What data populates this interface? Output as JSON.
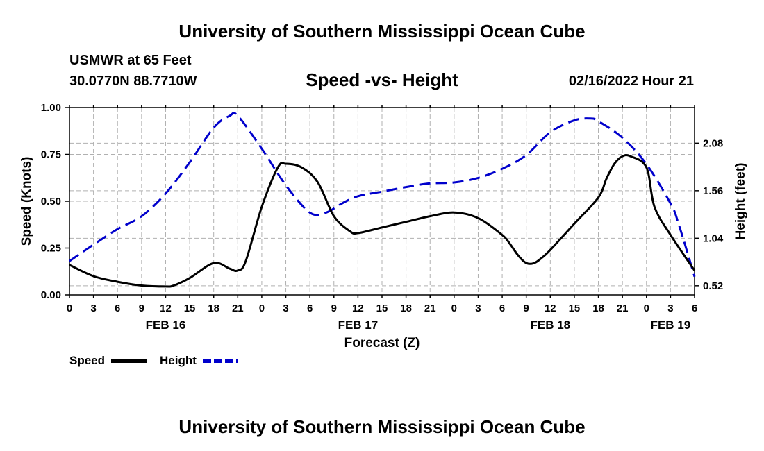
{
  "header": {
    "title": "University of Southern Mississippi Ocean Cube",
    "station": "USMWR at 65 Feet",
    "coords": "30.0770N  88.7710W",
    "subtitle": "Speed -vs- Height",
    "timestamp": "02/16/2022 Hour 21"
  },
  "footer": {
    "title": "University of Southern Mississippi Ocean Cube"
  },
  "colors": {
    "speed": "#000000",
    "height": "#0000cc",
    "grid": "#b0b0b0"
  },
  "chart_data": {
    "type": "line",
    "title": "Speed -vs- Height",
    "xlabel": "Forecast (Z)",
    "ylabel": "Speed (Knots)",
    "y2label": "Height (feet)",
    "xlim": [
      0,
      78
    ],
    "ylim": [
      0,
      1
    ],
    "y2lim": [
      0.42,
      2.47
    ],
    "x_ticks": [
      0,
      3,
      6,
      9,
      12,
      15,
      18,
      21,
      24,
      27,
      30,
      33,
      36,
      39,
      42,
      45,
      48,
      51,
      54,
      57,
      60,
      63,
      66,
      69,
      72,
      75,
      78
    ],
    "x_tick_labels": [
      "0",
      "3",
      "6",
      "9",
      "12",
      "15",
      "18",
      "21",
      "0",
      "3",
      "6",
      "9",
      "12",
      "15",
      "18",
      "21",
      "0",
      "3",
      "6",
      "9",
      "12",
      "15",
      "18",
      "21",
      "0",
      "3",
      "6"
    ],
    "date_labels": [
      {
        "label": "FEB 16",
        "x": 12
      },
      {
        "label": "FEB 17",
        "x": 36
      },
      {
        "label": "FEB 18",
        "x": 60
      },
      {
        "label": "FEB 19",
        "x": 75
      }
    ],
    "y_ticks": [
      0,
      0.25,
      0.5,
      0.75,
      1.0
    ],
    "y_tick_labels": [
      "0.00",
      "0.25",
      "0.50",
      "0.75",
      "1.00"
    ],
    "y2_ticks": [
      0.52,
      1.04,
      1.56,
      2.08
    ],
    "y2_tick_labels": [
      "0.52",
      "1.04",
      "1.56",
      "2.08"
    ],
    "legend": [
      "Speed",
      "Height"
    ],
    "series": [
      {
        "name": "Speed",
        "axis": "left",
        "style": "solid",
        "x": [
          0,
          3,
          6,
          9,
          12,
          13,
          15,
          18,
          20,
          21,
          22,
          24,
          26,
          27,
          29,
          31,
          33,
          35,
          36,
          39,
          42,
          45,
          48,
          51,
          54,
          55,
          56,
          57,
          58,
          59,
          60,
          63,
          66,
          67,
          68,
          69,
          70,
          72,
          73,
          75,
          78
        ],
        "y": [
          0.16,
          0.1,
          0.07,
          0.05,
          0.045,
          0.05,
          0.09,
          0.17,
          0.14,
          0.13,
          0.18,
          0.47,
          0.68,
          0.7,
          0.68,
          0.6,
          0.42,
          0.34,
          0.33,
          0.36,
          0.39,
          0.42,
          0.44,
          0.41,
          0.32,
          0.27,
          0.21,
          0.17,
          0.17,
          0.2,
          0.24,
          0.38,
          0.52,
          0.62,
          0.7,
          0.74,
          0.74,
          0.68,
          0.47,
          0.32,
          0.13
        ]
      },
      {
        "name": "Height",
        "axis": "right",
        "style": "dashed",
        "x": [
          0,
          3,
          6,
          9,
          12,
          15,
          18,
          20,
          21,
          24,
          27,
          30,
          32,
          34,
          36,
          39,
          42,
          45,
          48,
          51,
          54,
          57,
          60,
          63,
          65,
          66,
          69,
          72,
          75,
          76,
          78
        ],
        "y": [
          0.79,
          0.97,
          1.14,
          1.28,
          1.53,
          1.87,
          2.25,
          2.38,
          2.38,
          2.02,
          1.62,
          1.32,
          1.32,
          1.42,
          1.5,
          1.55,
          1.6,
          1.64,
          1.65,
          1.7,
          1.8,
          1.95,
          2.2,
          2.33,
          2.35,
          2.32,
          2.14,
          1.85,
          1.42,
          1.2,
          0.62
        ]
      }
    ]
  }
}
